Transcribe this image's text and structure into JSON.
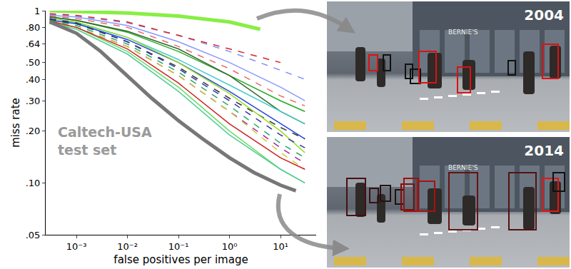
{
  "chart_data": {
    "type": "line",
    "x_label": "false positives per image",
    "y_label": "miss rate",
    "annotation": [
      "Caltech-USA",
      "test set"
    ],
    "log": true,
    "grid": false,
    "xlim": [
      0.00025,
      50
    ],
    "ylim": [
      0.05,
      1
    ],
    "xticks": [
      {
        "value": 0.001,
        "label": "10⁻³"
      },
      {
        "value": 0.01,
        "label": "10⁻²"
      },
      {
        "value": 0.1,
        "label": "10⁻¹"
      },
      {
        "value": 1,
        "label": "10⁰"
      },
      {
        "value": 10,
        "label": "10¹"
      }
    ],
    "yticks": [
      {
        "value": 0.05,
        "label": ".05"
      },
      {
        "value": 0.1,
        "label": ".10"
      },
      {
        "value": 0.2,
        "label": ".20"
      },
      {
        "value": 0.3,
        "label": ".30"
      },
      {
        "value": 0.4,
        "label": ".40"
      },
      {
        "value": 0.5,
        "label": ".50"
      },
      {
        "value": 0.64,
        "label": ".64"
      },
      {
        "value": 0.8,
        "label": ".80"
      },
      1
    ],
    "series": [
      {
        "color": "#7f8fff",
        "line_style": "dash",
        "x": [
          0.0003,
          0.001,
          0.01,
          0.1,
          1,
          10,
          30
        ],
        "values": [
          0.95,
          0.93,
          0.85,
          0.72,
          0.58,
          0.45,
          0.4
        ]
      },
      {
        "color": "#dd2222",
        "line_style": "dash",
        "x": [
          0.0003,
          0.001,
          0.01,
          0.1,
          1,
          10
        ],
        "values": [
          0.96,
          0.94,
          0.86,
          0.72,
          0.6,
          0.5
        ]
      },
      {
        "color": "#8899ff",
        "line_style": "solid",
        "x": [
          0.0003,
          0.001,
          0.01,
          0.1,
          1,
          10,
          30
        ],
        "values": [
          0.94,
          0.92,
          0.82,
          0.66,
          0.5,
          0.36,
          0.3
        ]
      },
      {
        "color": "#ee6666",
        "line_style": "dash",
        "x": [
          0.0003,
          0.001,
          0.01,
          0.1,
          1,
          10,
          30
        ],
        "values": [
          0.93,
          0.9,
          0.8,
          0.62,
          0.46,
          0.32,
          0.28
        ]
      },
      {
        "color": "#22aa22",
        "line_style": "solid",
        "x": [
          0.0003,
          0.001,
          0.01,
          0.1,
          1,
          10,
          30
        ],
        "values": [
          0.92,
          0.88,
          0.75,
          0.58,
          0.42,
          0.3,
          0.26
        ]
      },
      {
        "color": "#336633",
        "line_style": "solid",
        "x": [
          0.0003,
          0.001,
          0.01,
          0.1,
          1,
          10,
          30
        ],
        "values": [
          0.92,
          0.88,
          0.76,
          0.6,
          0.42,
          0.26,
          0.22
        ]
      },
      {
        "color": "#44cccc",
        "line_style": "solid",
        "x": [
          0.0003,
          0.001,
          0.01,
          0.1,
          1,
          10,
          30
        ],
        "values": [
          0.9,
          0.85,
          0.7,
          0.52,
          0.37,
          0.26,
          0.22
        ]
      },
      {
        "color": "#2244dd",
        "line_style": "solid",
        "x": [
          0.0003,
          0.001,
          0.01,
          0.1,
          1,
          10,
          30
        ],
        "values": [
          0.88,
          0.84,
          0.68,
          0.5,
          0.34,
          0.22,
          0.18
        ]
      },
      {
        "color": "#333333",
        "line_style": "dash",
        "x": [
          0.0003,
          0.001,
          0.01,
          0.1,
          1,
          10,
          30
        ],
        "values": [
          0.89,
          0.84,
          0.66,
          0.47,
          0.31,
          0.21,
          0.18
        ]
      },
      {
        "color": "#99dd22",
        "line_style": "solid",
        "x": [
          0.0003,
          0.001,
          0.01,
          0.1,
          1,
          10,
          30
        ],
        "values": [
          0.9,
          0.86,
          0.7,
          0.5,
          0.33,
          0.2,
          0.15
        ]
      },
      {
        "color": "#3333aa",
        "line_style": "dash",
        "x": [
          0.0003,
          0.001,
          0.01,
          0.1,
          1,
          10,
          30
        ],
        "values": [
          0.9,
          0.85,
          0.66,
          0.46,
          0.3,
          0.19,
          0.16
        ]
      },
      {
        "color": "#22aa66",
        "line_style": "dash",
        "x": [
          0.0003,
          0.001,
          0.01,
          0.1,
          1,
          10,
          30
        ],
        "values": [
          0.88,
          0.82,
          0.64,
          0.44,
          0.28,
          0.17,
          0.14
        ]
      },
      {
        "color": "#aa22aa",
        "line_style": "dash",
        "x": [
          0.0003,
          0.001,
          0.01,
          0.1,
          1,
          10,
          30
        ],
        "values": [
          0.86,
          0.8,
          0.62,
          0.42,
          0.26,
          0.16,
          0.13
        ]
      },
      {
        "color": "#cccc33",
        "line_style": "dash",
        "x": [
          0.0003,
          0.001,
          0.01,
          0.1,
          1,
          10,
          30
        ],
        "values": [
          0.84,
          0.8,
          0.62,
          0.42,
          0.26,
          0.15,
          0.12
        ]
      },
      {
        "color": "#66dd66",
        "line_style": "solid",
        "x": [
          0.0003,
          0.001,
          0.01,
          0.1,
          1,
          10,
          30
        ],
        "values": [
          0.86,
          0.8,
          0.58,
          0.36,
          0.2,
          0.12,
          0.1
        ]
      },
      {
        "color": "#cc2222",
        "line_style": "solid",
        "x": [
          0.0003,
          0.001,
          0.01,
          0.1,
          1,
          10,
          30
        ],
        "values": [
          0.87,
          0.8,
          0.6,
          0.38,
          0.22,
          0.14,
          0.12
        ]
      },
      {
        "color": "#55cc99",
        "line_style": "solid",
        "x": [
          0.0003,
          0.001,
          0.01,
          0.1,
          1,
          10,
          30
        ],
        "values": [
          0.85,
          0.78,
          0.56,
          0.34,
          0.19,
          0.12,
          0.1
        ]
      },
      {
        "color": "#88ee44",
        "line_style": "thick",
        "x": [
          0.0003,
          0.001,
          0.01,
          0.1,
          1,
          4
        ],
        "values": [
          1,
          0.99,
          0.97,
          0.93,
          0.86,
          0.78
        ]
      },
      {
        "color": "#777777",
        "line_style": "thick",
        "x": [
          0.0003,
          0.001,
          0.003,
          0.01,
          0.03,
          0.1,
          0.3,
          1,
          3,
          10,
          20
        ],
        "values": [
          0.86,
          0.74,
          0.58,
          0.42,
          0.31,
          0.23,
          0.18,
          0.14,
          0.115,
          0.097,
          0.09
        ]
      }
    ]
  },
  "photos": [
    {
      "label": "2004",
      "sign": "BERNIE'S"
    },
    {
      "label": "2014",
      "sign": "BERNIE'S"
    }
  ]
}
